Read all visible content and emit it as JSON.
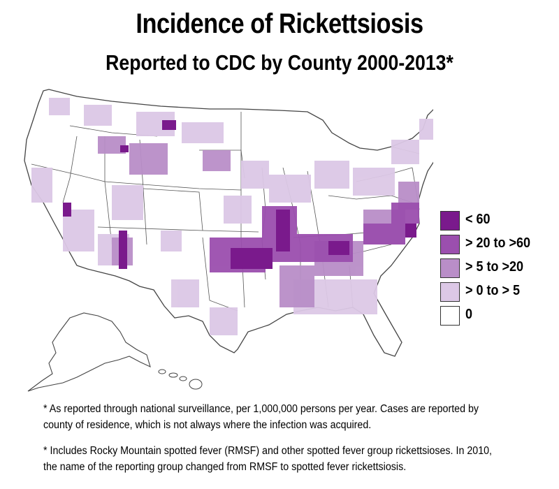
{
  "title": "Incidence of Rickettsiosis",
  "subtitle": "Reported to CDC by County 2000-2013*",
  "legend": [
    {
      "label": "< 60",
      "color": "#7a1a8c"
    },
    {
      "label": "> 20 to >60",
      "color": "#9b4fae"
    },
    {
      "label": "> 5 to >20",
      "color": "#b98ec8"
    },
    {
      "label": "> 0 to > 5",
      "color": "#dcc8e6"
    },
    {
      "label": "0",
      "color": "#ffffff"
    }
  ],
  "notes": [
    "* As reported through national surveillance, per 1,000,000 persons per year. Cases are reported by county of residence, which is not always where the infection was acquired.",
    "* Includes Rocky Mountain spotted fever (RMSF) and other spotted fever group rickettsioses. In 2010, the name of the reporting group changed from RMSF to spotted fever rickettsiosis."
  ],
  "map": {
    "region": "United States",
    "unit": "county",
    "hotspot_regions": [
      {
        "area": "Missouri-Arkansas-Oklahoma",
        "level": "< 60"
      },
      {
        "area": "Tennessee-North Carolina",
        "level": "> 20 to >60"
      },
      {
        "area": "Arizona",
        "level": "< 60"
      },
      {
        "area": "Montana-Wyoming",
        "level": "> 5 to >20"
      }
    ]
  }
}
